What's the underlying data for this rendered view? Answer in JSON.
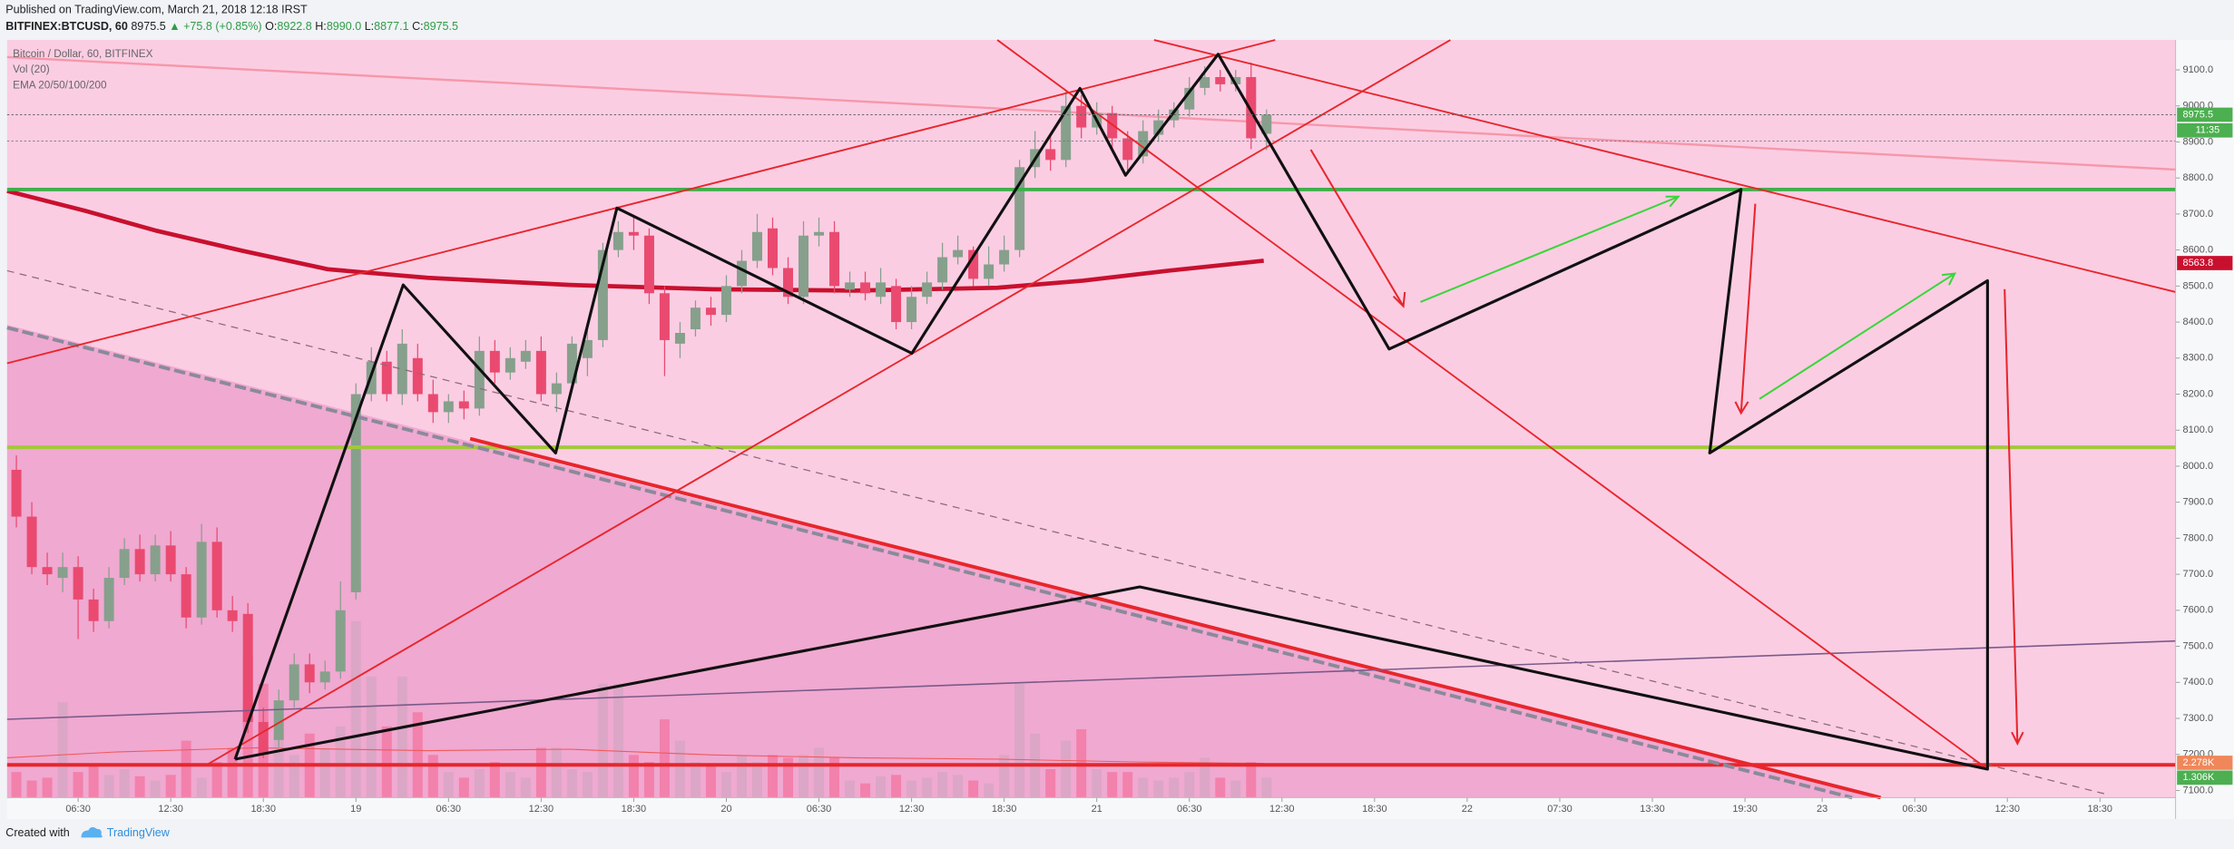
{
  "header": {
    "published": "Published on TradingView.com, March 21, 2018 12:18 IRST",
    "symbol": "BITFINEX:BTCUSD, 60",
    "last": "8975.5",
    "change": "▲ +75.8 (+0.85%)",
    "ohlc": [
      [
        "O:",
        "8922.8"
      ],
      [
        "H:",
        "8990.0"
      ],
      [
        "L:",
        "8877.1"
      ],
      [
        "C:",
        "8975.5"
      ]
    ]
  },
  "chart_data": {
    "type": "candlestick",
    "title": "Bitcoin / Dollar, 60, BITFINEX",
    "indicators": [
      "Vol (20)",
      "EMA 20/50/100/200"
    ],
    "x": [
      -22,
      -21,
      -20,
      -19,
      -18,
      -17,
      -16,
      -15,
      -14,
      -13,
      -12,
      -11,
      -10,
      -9,
      -8,
      -7,
      -6,
      -5,
      -4,
      -3,
      -2,
      -1,
      0,
      1,
      2,
      3,
      4,
      5,
      6,
      7,
      8,
      9,
      10,
      11,
      12,
      13,
      14,
      15,
      16,
      17,
      18,
      19,
      20,
      21,
      22,
      23,
      24,
      25,
      26,
      27,
      28,
      29,
      30,
      31,
      32,
      33,
      34,
      35,
      36,
      37,
      38,
      39,
      40,
      41,
      42,
      43,
      44,
      45,
      46,
      47,
      48,
      49,
      50,
      51,
      52,
      53,
      54,
      55,
      56,
      57,
      58,
      59
    ],
    "open": [
      7990,
      7860,
      7720,
      7690,
      7720,
      7630,
      7570,
      7690,
      7770,
      7700,
      7780,
      7700,
      7580,
      7790,
      7600,
      7590,
      7290,
      7240,
      7350,
      7450,
      7400,
      7430,
      7650,
      8200,
      8290,
      8200,
      8300,
      8200,
      8150,
      8180,
      8160,
      8320,
      8260,
      8290,
      8320,
      8200,
      8230,
      8300,
      8350,
      8600,
      8650,
      8640,
      8480,
      8340,
      8380,
      8440,
      8420,
      8500,
      8570,
      8660,
      8550,
      8470,
      8640,
      8650,
      8490,
      8510,
      8470,
      8500,
      8400,
      8470,
      8510,
      8580,
      8600,
      8520,
      8560,
      8600,
      8830,
      8880,
      8850,
      9000,
      8940,
      8980,
      8910,
      8860,
      8920,
      8960,
      8990,
      9050,
      9080,
      9060,
      9080,
      8922.8
    ],
    "high": [
      8030,
      7900,
      7760,
      7760,
      7750,
      7660,
      7720,
      7800,
      7810,
      7810,
      7820,
      7720,
      7840,
      7830,
      7640,
      7620,
      7330,
      7380,
      7480,
      7480,
      7460,
      7680,
      8230,
      8330,
      8320,
      8380,
      8340,
      8240,
      8200,
      8210,
      8360,
      8350,
      8330,
      8350,
      8360,
      8260,
      8360,
      8390,
      8620,
      8680,
      8690,
      8660,
      8500,
      8400,
      8460,
      8470,
      8530,
      8600,
      8700,
      8690,
      8580,
      8680,
      8690,
      8680,
      8540,
      8540,
      8550,
      8520,
      8500,
      8540,
      8620,
      8640,
      8610,
      8610,
      8640,
      8850,
      8930,
      8920,
      9040,
      9030,
      9010,
      9000,
      8930,
      8960,
      8990,
      9010,
      9080,
      9110,
      9100,
      9100,
      9120,
      8990
    ],
    "low": [
      7830,
      7700,
      7670,
      7650,
      7520,
      7540,
      7550,
      7670,
      7680,
      7680,
      7680,
      7550,
      7560,
      7580,
      7540,
      7260,
      7190,
      7220,
      7330,
      7370,
      7380,
      7410,
      7630,
      8180,
      8180,
      8170,
      8180,
      8120,
      8120,
      8130,
      8140,
      8230,
      8240,
      8270,
      8180,
      8150,
      8210,
      8250,
      8330,
      8580,
      8600,
      8450,
      8250,
      8300,
      8360,
      8390,
      8400,
      8480,
      8550,
      8530,
      8450,
      8450,
      8610,
      8480,
      8470,
      8460,
      8450,
      8380,
      8380,
      8450,
      8490,
      8560,
      8500,
      8500,
      8540,
      8580,
      8800,
      8820,
      8830,
      8910,
      8920,
      8880,
      8810,
      8840,
      8900,
      8940,
      8970,
      9030,
      9040,
      9040,
      8880,
      8877.1
    ],
    "close": [
      7860,
      7720,
      7700,
      7720,
      7630,
      7570,
      7690,
      7770,
      7700,
      7780,
      7700,
      7580,
      7790,
      7600,
      7570,
      7290,
      7200,
      7350,
      7450,
      7400,
      7430,
      7600,
      8200,
      8290,
      8200,
      8340,
      8200,
      8150,
      8180,
      8160,
      8320,
      8260,
      8300,
      8320,
      8200,
      8230,
      8340,
      8350,
      8600,
      8650,
      8640,
      8480,
      8350,
      8370,
      8440,
      8420,
      8500,
      8570,
      8650,
      8550,
      8470,
      8640,
      8650,
      8500,
      8510,
      8480,
      8510,
      8400,
      8470,
      8510,
      8580,
      8600,
      8520,
      8560,
      8600,
      8830,
      8880,
      8850,
      9000,
      8940,
      8980,
      8910,
      8850,
      8930,
      8960,
      8990,
      9050,
      9080,
      9060,
      9080,
      8910,
      8975.5
    ],
    "volume": [
      1674,
      1116,
      1302,
      6231,
      1674,
      2046,
      1488,
      1860,
      1395,
      1116,
      1488,
      3720,
      1302,
      2325,
      3255,
      9300,
      7440,
      4185,
      2790,
      4185,
      3255,
      4650,
      11532,
      7905,
      4650,
      7905,
      5580,
      2790,
      1674,
      1302,
      1860,
      2325,
      1674,
      1302,
      3255,
      3255,
      1860,
      1674,
      7440,
      7440,
      2790,
      2325,
      5115,
      3720,
      2325,
      2046,
      1674,
      2790,
      2325,
      2790,
      2604,
      2790,
      3255,
      2604,
      1116,
      930,
      1395,
      1488,
      1116,
      1302,
      1674,
      1488,
      1116,
      930,
      2790,
      7440,
      4185,
      1860,
      3720,
      4464,
      1860,
      1674,
      1674,
      1302,
      1116,
      1302,
      1674,
      2604,
      1302,
      1116,
      2325,
      1306
    ],
    "up_color": "#86a08c",
    "down_color": "#ea4a70",
    "volume_up_color": "#d8a6c4",
    "volume_down_color": "#f27aa6",
    "xlim": [
      -22.6,
      117.9
    ],
    "xticks": [
      {
        "value": -18,
        "label": "06:30"
      },
      {
        "value": -12,
        "label": "12:30"
      },
      {
        "value": -6,
        "label": "18:30"
      },
      {
        "value": 0,
        "label": "19"
      },
      {
        "value": 6,
        "label": "06:30"
      },
      {
        "value": 12,
        "label": "12:30"
      },
      {
        "value": 18,
        "label": "18:30"
      },
      {
        "value": 24,
        "label": "20"
      },
      {
        "value": 30,
        "label": "06:30"
      },
      {
        "value": 36,
        "label": "12:30"
      },
      {
        "value": 42,
        "label": "18:30"
      },
      {
        "value": 48,
        "label": "21"
      },
      {
        "value": 54,
        "label": "06:30"
      },
      {
        "value": 60,
        "label": "12:30"
      },
      {
        "value": 66,
        "label": "18:30"
      },
      {
        "value": 72,
        "label": "22"
      },
      {
        "value": 78,
        "label": "07:30"
      },
      {
        "value": 84,
        "label": "13:30"
      },
      {
        "value": 90,
        "label": "19:30"
      },
      {
        "value": 95,
        "label": "23"
      },
      {
        "value": 101,
        "label": "06:30"
      },
      {
        "value": 107,
        "label": "12:30"
      },
      {
        "value": 113,
        "label": "18:30"
      }
    ],
    "ylim": [
      7080,
      9183
    ],
    "yticks": [
      {
        "value": 7100,
        "label": "7100.0"
      },
      {
        "value": 7200,
        "label": "7200.0"
      },
      {
        "value": 7300,
        "label": "7300.0"
      },
      {
        "value": 7400,
        "label": "7400.0"
      },
      {
        "value": 7500,
        "label": "7500.0"
      },
      {
        "value": 7600,
        "label": "7600.0"
      },
      {
        "value": 7700,
        "label": "7700.0"
      },
      {
        "value": 7800,
        "label": "7800.0"
      },
      {
        "value": 7900,
        "label": "7900.0"
      },
      {
        "value": 8000,
        "label": "8000.0"
      },
      {
        "value": 8100,
        "label": "8100.0"
      },
      {
        "value": 8200,
        "label": "8200.0"
      },
      {
        "value": 8300,
        "label": "8300.0"
      },
      {
        "value": 8400,
        "label": "8400.0"
      },
      {
        "value": 8500,
        "label": "8500.0"
      },
      {
        "value": 8600,
        "label": "8600.0"
      },
      {
        "value": 8700,
        "label": "8700.0"
      },
      {
        "value": 8800,
        "label": "8800.0"
      },
      {
        "value": 8900,
        "label": "8900.0"
      },
      {
        "value": 9000,
        "label": "9000.0"
      },
      {
        "value": 9100,
        "label": "9100.0"
      }
    ],
    "y2lim": [
      0,
      49500
    ],
    "countdown": "11:35",
    "ema_tag": 8563.8,
    "volume_tags": [
      {
        "value": 2278,
        "label": "2.278K",
        "color": "#f0875a"
      },
      {
        "value": 1306,
        "label": "1.306K",
        "color": "#4caf50"
      }
    ]
  },
  "footer": {
    "created": "Created with",
    "brand": "TradingView"
  }
}
